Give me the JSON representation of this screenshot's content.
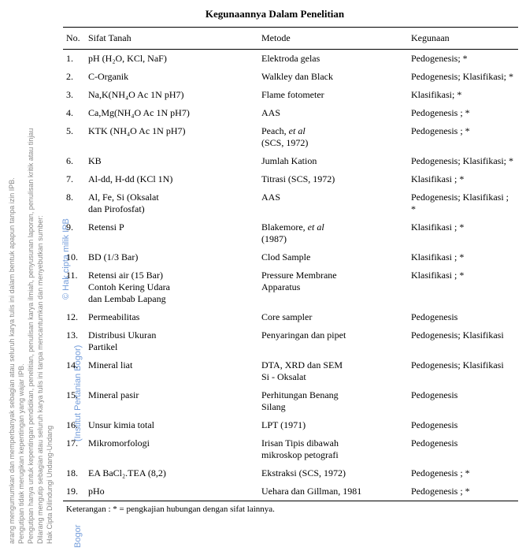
{
  "title": "Kegunaannya Dalam Penelitian",
  "headers": {
    "no": "No.",
    "sifat": "Sifat Tanah",
    "metode": "Metode",
    "kegunaan": "Kegunaan"
  },
  "rows": [
    {
      "no": "1.",
      "sifat": "pH (H₂O, KCl, NaF)",
      "metode": "Elektroda gelas",
      "kegunaan": "Pedogenesis; *"
    },
    {
      "no": "2.",
      "sifat": "C-Organik",
      "metode": "Walkley dan Black",
      "kegunaan": "Pedogenesis; Klasifikasi; *"
    },
    {
      "no": "3.",
      "sifat": "Na,K(NH₄O Ac 1N pH7)",
      "metode": "Flame fotometer",
      "kegunaan": "Klasifikasi;  *"
    },
    {
      "no": "4.",
      "sifat": "Ca,Mg(NH₄O Ac 1N pH7)",
      "metode": "AAS",
      "kegunaan": "Pedogenesis ; *"
    },
    {
      "no": "5.",
      "sifat": "KTK (NH₄O Ac 1N pH7)",
      "metode": "Peach, et al\n(SCS, 1972)",
      "kegunaan": "Pedogenesis ; *"
    },
    {
      "no": "6.",
      "sifat": "KB",
      "metode": "Jumlah Kation",
      "kegunaan": "Pedogenesis; Klasifikasi; *"
    },
    {
      "no": "7.",
      "sifat": "Al-dd, H-dd (KCl 1N)",
      "metode": "Titrasi (SCS, 1972)",
      "kegunaan": "Klasifikasi ; *"
    },
    {
      "no": "8.",
      "sifat": "Al, Fe, Si (Oksalat\ndan Pirofosfat)",
      "metode": "AAS",
      "kegunaan": "Pedogenesis; Klasifikasi ; *"
    },
    {
      "no": "9.",
      "sifat": "Retensi P",
      "metode": "Blakemore, et al\n(1987)",
      "kegunaan": "Klasifikasi ; *"
    },
    {
      "no": "10.",
      "sifat": "BD (1/3 Bar)",
      "metode": "Clod Sample",
      "kegunaan": "Klasifikasi ; *"
    },
    {
      "no": "11.",
      "sifat": "Retensi air (15 Bar)\nContoh Kering Udara\ndan Lembab Lapang",
      "metode": "Pressure Membrane\nApparatus",
      "kegunaan": "Klasifikasi ; *"
    },
    {
      "no": "12.",
      "sifat": "Permeabilitas",
      "metode": "Core sampler",
      "kegunaan": "Pedogenesis"
    },
    {
      "no": "13.",
      "sifat": "Distribusi Ukuran\nPartikel",
      "metode": "Penyaringan dan pipet",
      "kegunaan": "Pedogenesis; Klasifikasi"
    },
    {
      "no": "14.",
      "sifat": "Mineral liat",
      "metode": "DTA, XRD dan SEM\nSi - Oksalat",
      "kegunaan": "Pedogenesis; Klasifikasi"
    },
    {
      "no": "15.",
      "sifat": "Mineral pasir",
      "metode": "Perhitungan Benang\nSilang",
      "kegunaan": "Pedogenesis"
    },
    {
      "no": "16.",
      "sifat": "Unsur kimia total",
      "metode": "LPT (1971)",
      "kegunaan": "Pedogenesis"
    },
    {
      "no": "17.",
      "sifat": "Mikromorfologi",
      "metode": "Irisan Tipis dibawah\nmikroskop petografi",
      "kegunaan": "Pedogenesis"
    },
    {
      "no": "18.",
      "sifat": "EA BaCl₂.TEA (8,2)",
      "metode": "Ekstraksi (SCS, 1972)",
      "kegunaan": "Pedogenesis ; *"
    },
    {
      "no": "19.",
      "sifat": "pHo",
      "metode": "Uehara dan Gillman, 1981",
      "kegunaan": "Pedogenesis ; *"
    }
  ],
  "footnote": "Keterangan : * = pengkajian hubungan dengan sifat lainnya.",
  "watermarks": {
    "gray1": "arang mengumumkan dan memperbanyak sebagian atau seluruh karya tulis ini dalam bentuk apapun tanpa izin IPB.",
    "gray2": "Pengutipan tidak merugikan kepentingan yang wajar IPB.",
    "gray3": "Pengutipan hanya untuk kepentingan pendidikan, penelitian, penulisan karya ilmiah, penyusunan laporan, penulisan kritik atau tinjau",
    "gray4": "Dilarang mengutip sebagian atau seluruh karya tulis ini tanpa mencantumkan dan menyebutkan sumber:",
    "gray5": "Hak Cipta Dilindungi Undang-Undang",
    "blue1": "© Hak cipta milik IPB",
    "blue2": "(Institut Pertanian Bogor)",
    "blue3": "Bogor"
  }
}
